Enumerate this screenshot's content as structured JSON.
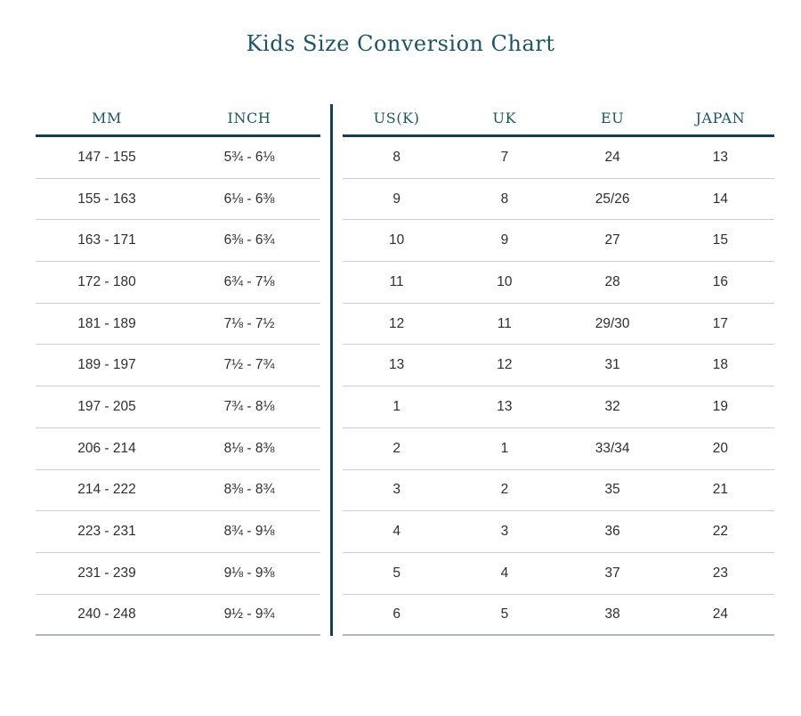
{
  "title": "Kids Size Conversion Chart",
  "colors": {
    "accent_text": "#1d5466",
    "accent_rule": "#15414f",
    "row_separator": "#cbcfd1",
    "table_bottom_border": "#b2b7b9",
    "body_text": "#2e2e2e",
    "background": "#ffffff"
  },
  "chart_data": {
    "type": "table",
    "title": "Kids Size Conversion Chart",
    "layout": "two tables side by side separated by vertical teal rule",
    "tables": [
      {
        "name": "foot-length",
        "headers": [
          "MM",
          "INCH"
        ],
        "rows": [
          [
            "147 - 155",
            "5¾ - 6⅛"
          ],
          [
            "155 - 163",
            "6⅛ - 6⅜"
          ],
          [
            "163 - 171",
            "6⅜ - 6¾"
          ],
          [
            "172 - 180",
            "6¾ - 7⅛"
          ],
          [
            "181 - 189",
            "7⅛ - 7½"
          ],
          [
            "189 - 197",
            "7½ - 7¾"
          ],
          [
            "197 - 205",
            "7¾ - 8⅛"
          ],
          [
            "206 - 214",
            "8⅛ - 8⅜"
          ],
          [
            "214 - 222",
            "8⅜ - 8¾"
          ],
          [
            "223 - 231",
            "8¾ - 9⅛"
          ],
          [
            "231 - 239",
            "9⅛ - 9⅜"
          ],
          [
            "240 - 248",
            "9½ - 9¾"
          ]
        ]
      },
      {
        "name": "international-sizes",
        "headers": [
          "US(K)",
          "UK",
          "EU",
          "JAPAN"
        ],
        "rows": [
          [
            "8",
            "7",
            "24",
            "13"
          ],
          [
            "9",
            "8",
            "25/26",
            "14"
          ],
          [
            "10",
            "9",
            "27",
            "15"
          ],
          [
            "11",
            "10",
            "28",
            "16"
          ],
          [
            "12",
            "11",
            "29/30",
            "17"
          ],
          [
            "13",
            "12",
            "31",
            "18"
          ],
          [
            "1",
            "13",
            "32",
            "19"
          ],
          [
            "2",
            "1",
            "33/34",
            "20"
          ],
          [
            "3",
            "2",
            "35",
            "21"
          ],
          [
            "4",
            "3",
            "36",
            "22"
          ],
          [
            "5",
            "4",
            "37",
            "23"
          ],
          [
            "6",
            "5",
            "38",
            "24"
          ]
        ]
      }
    ]
  }
}
